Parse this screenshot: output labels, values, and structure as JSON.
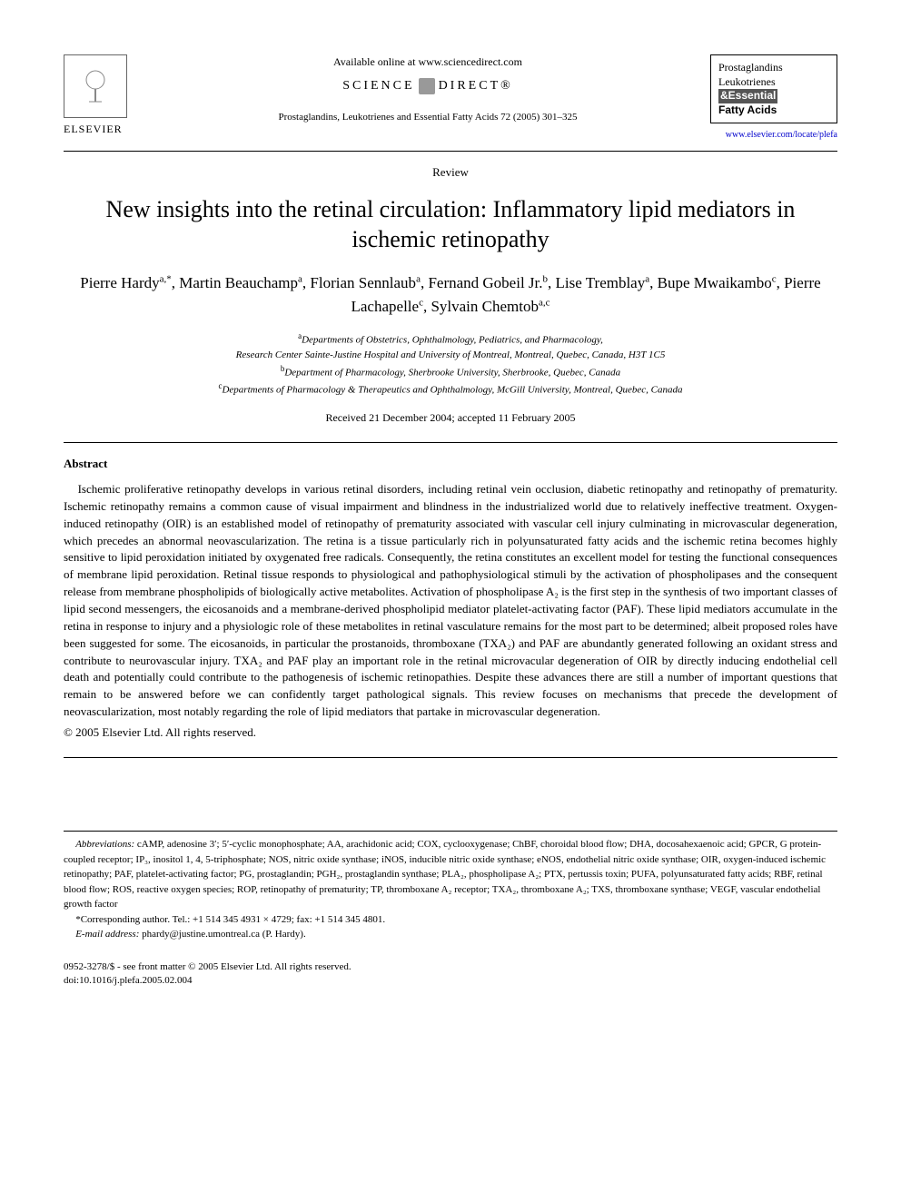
{
  "header": {
    "publisher_name": "ELSEVIER",
    "available_online": "Available online at www.sciencedirect.com",
    "science_direct_left": "SCIENCE",
    "science_direct_right": "DIRECT®",
    "citation": "Prostaglandins, Leukotrienes and Essential Fatty Acids 72 (2005) 301–325",
    "journal_box": {
      "line1": "Prostaglandins",
      "line2": "Leukotrienes",
      "line3": "&Essential",
      "line4": "Fatty Acids"
    },
    "journal_url": "www.elsevier.com/locate/plefa"
  },
  "article": {
    "type": "Review",
    "title": "New insights into the retinal circulation: Inflammatory lipid mediators in ischemic retinopathy",
    "authors_html": "Pierre Hardy<sup>a,*</sup>, Martin Beauchamp<sup>a</sup>, Florian Sennlaub<sup>a</sup>, Fernand Gobeil Jr.<sup>b</sup>, Lise Tremblay<sup>a</sup>, Bupe Mwaikambo<sup>c</sup>, Pierre Lachapelle<sup>c</sup>, Sylvain Chemtob<sup>a,c</sup>",
    "affiliations": [
      {
        "sup": "a",
        "text": "Departments of Obstetrics, Ophthalmology, Pediatrics, and Pharmacology,"
      },
      {
        "sup": "",
        "text": "Research Center Sainte-Justine Hospital and University of Montreal, Montreal, Quebec, Canada, H3T 1C5"
      },
      {
        "sup": "b",
        "text": "Department of Pharmacology, Sherbrooke University, Sherbrooke, Quebec, Canada"
      },
      {
        "sup": "c",
        "text": "Departments of Pharmacology & Therapeutics and Ophthalmology, McGill University, Montreal, Quebec, Canada"
      }
    ],
    "dates": "Received 21 December 2004; accepted 11 February 2005"
  },
  "abstract": {
    "heading": "Abstract",
    "body": "Ischemic proliferative retinopathy develops in various retinal disorders, including retinal vein occlusion, diabetic retinopathy and retinopathy of prematurity. Ischemic retinopathy remains a common cause of visual impairment and blindness in the industrialized world due to relatively ineffective treatment. Oxygen-induced retinopathy (OIR) is an established model of retinopathy of prematurity associated with vascular cell injury culminating in microvascular degeneration, which precedes an abnormal neovascularization. The retina is a tissue particularly rich in polyunsaturated fatty acids and the ischemic retina becomes highly sensitive to lipid peroxidation initiated by oxygenated free radicals. Consequently, the retina constitutes an excellent model for testing the functional consequences of membrane lipid peroxidation. Retinal tissue responds to physiological and pathophysiological stimuli by the activation of phospholipases and the consequent release from membrane phospholipids of biologically active metabolites. Activation of phospholipase A₂ is the first step in the synthesis of two important classes of lipid second messengers, the eicosanoids and a membrane-derived phospholipid mediator platelet-activating factor (PAF). These lipid mediators accumulate in the retina in response to injury and a physiologic role of these metabolites in retinal vasculature remains for the most part to be determined; albeit proposed roles have been suggested for some. The eicosanoids, in particular the prostanoids, thromboxane (TXA₂) and PAF are abundantly generated following an oxidant stress and contribute to neurovascular injury. TXA₂ and PAF play an important role in the retinal microvacular degeneration of OIR by directly inducing endothelial cell death and potentially could contribute to the pathogenesis of ischemic retinopathies. Despite these advances there are still a number of important questions that remain to be answered before we can confidently target pathological signals. This review focuses on mechanisms that precede the development of neovascularization, most notably regarding the role of lipid mediators that partake in microvascular degeneration.",
    "copyright": "© 2005 Elsevier Ltd. All rights reserved."
  },
  "footnotes": {
    "abbrev_label": "Abbreviations:",
    "abbrev_text": " cAMP, adenosine 3′; 5′-cyclic monophosphate; AA, arachidonic acid; COX, cyclooxygenase; ChBF, choroidal blood flow; DHA, docosahexaenoic acid; GPCR, G protein-coupled receptor; IP₃, inositol 1, 4, 5-triphosphate; NOS, nitric oxide synthase; iNOS, inducible nitric oxide synthase; eNOS, endothelial nitric oxide synthase; OIR, oxygen-induced ischemic retinopathy; PAF, platelet-activating factor; PG, prostaglandin; PGH₂, prostaglandin synthase; PLA₂, phospholipase A₂; PTX, pertussis toxin; PUFA, polyunsaturated fatty acids; RBF, retinal blood flow; ROS, reactive oxygen species; ROP, retinopathy of prematurity; TP, thromboxane A₂ receptor; TXA₂, thromboxane A₂; TXS, thromboxane synthase; VEGF, vascular endothelial growth factor",
    "corresponding": "*Corresponding author. Tel.: +1 514 345 4931 × 4729; fax: +1 514 345 4801.",
    "email_label": "E-mail address:",
    "email": " phardy@justine.umontreal.ca (P. Hardy)."
  },
  "footer": {
    "line1": "0952-3278/$ - see front matter © 2005 Elsevier Ltd. All rights reserved.",
    "line2": "doi:10.1016/j.plefa.2005.02.004"
  }
}
